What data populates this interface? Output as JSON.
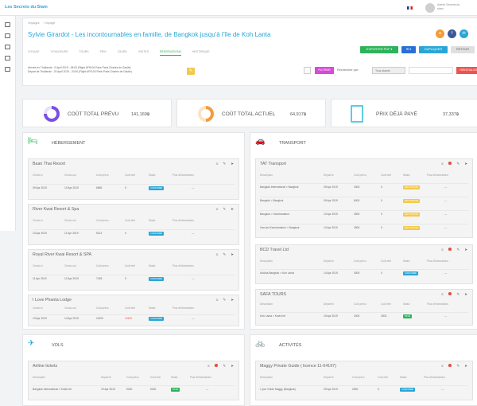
{
  "app": {
    "brand": "Les Secrets du Siam",
    "user_line1": "Admin Secrets du",
    "user_line2": "siam"
  },
  "breadcrumb": [
    "Voyages",
    "/ Voyage"
  ],
  "trip": {
    "title": "Sylvie Girardot - Les incontournables en famille, de Bangkok jusqu'à l'île de Koh Lanta"
  },
  "tabs": [
    "VOYAGE",
    "VOYAGEURS",
    "TOURS",
    "PRIX",
    "JOURS",
    "VISITES",
    "RÉSERVATIONS",
    "HISTORIQUE"
  ],
  "actions": {
    "export": "EXPORTER PDF ▾",
    "email": "✉ ▾",
    "duplicate": "DUPLIQUER",
    "back": "RETOUR"
  },
  "dates": {
    "arrival": "Arrivée en Thaïlande : 9 April 2019 - 08:00 (Flight AF9104 Paris Paris Charles de Gaulle)",
    "departure": "Départ de Thaïlande : 20 April 2019 - 20:00 (Flight AF9103 Paris Paris Charles de Gaulle)"
  },
  "filters": {
    "filter_btn": "FILTRER",
    "search_label": "Rechercher par :",
    "select": "Tous statuts",
    "reset": "RÉINITIALISER"
  },
  "kpis": [
    {
      "label": "COÛT TOTAL PRÉVU",
      "value": "141,169฿",
      "color": "#7b4fe0"
    },
    {
      "label": "COÛT TOTAL ACTUEL",
      "value": "64,917฿",
      "color": "#f39c3a"
    },
    {
      "label": "PRIX DÉJÀ PAYÉ",
      "value": "37,337฿",
      "color": "#5fcbe0"
    }
  ],
  "sections": {
    "hebergement": {
      "title": "HÉBERGEMENT",
      "icon_color": "#2db35a",
      "cols": [
        "Check-in",
        "Check-out",
        "Coût prévu",
        "Coût réel",
        "Statut",
        "Plus d'informations"
      ],
      "cards": [
        {
          "name": "Baan Thai Resort",
          "rows": [
            [
              "09 Apr 2019",
              "10 Apr 2019",
              "6865",
              "0",
              "CONFIRMÉ",
              "---"
            ]
          ]
        },
        {
          "name": "River Kwai Resort & Spa",
          "rows": [
            [
              "10 Apr 2019",
              "11 Apr 2019",
              "5113",
              "0",
              "CONFIRMÉ",
              "---"
            ]
          ]
        },
        {
          "name": "Royal River Kwai Resort & SPA",
          "rows": [
            [
              "11 Apr 2019",
              "12 Apr 2019",
              "7425",
              "0",
              "CONFIRMÉ",
              "---"
            ]
          ]
        },
        {
          "name": "I Love Phanta Lodge",
          "rows": [
            [
              "13 Apr 2019",
              "14 Apr 2019",
              "11000",
              "10400",
              "CONFIRMÉ",
              "---"
            ]
          ]
        }
      ]
    },
    "transport": {
      "title": "TRANSPORT",
      "icon_color": "#d84ad8",
      "cards": [
        {
          "name": "TAT Transport",
          "cols": [
            "Description",
            "Départ le",
            "Coût prévu",
            "Coût réel",
            "Statut",
            "Plus d'informations"
          ],
          "rows": [
            [
              "Bangkok International > Bangkok",
              "09 Apr 2019",
              "1500",
              "0",
              "EN ATTENTE",
              "---"
            ],
            [
              "Bangkok > Bangkok",
              "09 Apr 2019",
              "6000",
              "0",
              "EN ATTENTE",
              "---"
            ],
            [
              "Bangkok > Kanchanaburi",
              "10 Apr 2019",
              "4500",
              "0",
              "EN ATTENTE",
              "---"
            ],
            [
              "Van taxi Kanchanaburi > Bangkok",
              "13 Apr 2019",
              "2800",
              "0",
              "EN ATTENTE",
              "---"
            ]
          ]
        },
        {
          "name": "BCD Travel Ltd",
          "cols": [
            "Description",
            "Départ le",
            "Coût prévu",
            "Coût réel",
            "Statut",
            "Plus d'informations"
          ],
          "rows": [
            [
              "AirAsia Bangkok > Koh Lanta",
              "14 Apr 2019",
              "3000",
              "0",
              "CONFIRMÉ",
              "---"
            ]
          ]
        },
        {
          "name": "SAFA TOURS",
          "cols": [
            "Description",
            "Départ le",
            "Coût prévu",
            "Coût réel",
            "Statut",
            "Plus d'informations"
          ],
          "rows": [
            [
              "Koh Lanta > Krabi Intl",
              "19 Apr 2019",
              "2000",
              "2000",
              "PAYÉ",
              "---"
            ]
          ]
        }
      ]
    },
    "vols": {
      "title": "VOLS",
      "icon_color": "#2aa6d6",
      "cards": [
        {
          "name": "Airline tickets",
          "cols": [
            "Description",
            "Départ le",
            "Coût prévu",
            "Coût réel",
            "Statut",
            "Plus d'informations"
          ],
          "rows": [
            [
              "Bangkok International > Krabi Intl",
              "19 Apr 2019",
              "5230",
              "5230",
              "PAYÉ",
              "---"
            ]
          ]
        }
      ]
    },
    "activites": {
      "title": "ACTIVITÉS",
      "icon_color": "#f2c94c",
      "cards": [
        {
          "name": "Maggy Private Guide ( licence 11-64197)",
          "cols": [
            "Description",
            "Départ le",
            "Coût prévu",
            "Coût réel",
            "Statut",
            "Plus d'informations"
          ],
          "rows": [
            [
              "1 jour Guide Maggy (Bangkok)",
              "09 Apr 2019",
              "2500",
              "0",
              "CONFIRMÉ",
              "---"
            ]
          ]
        }
      ]
    }
  }
}
